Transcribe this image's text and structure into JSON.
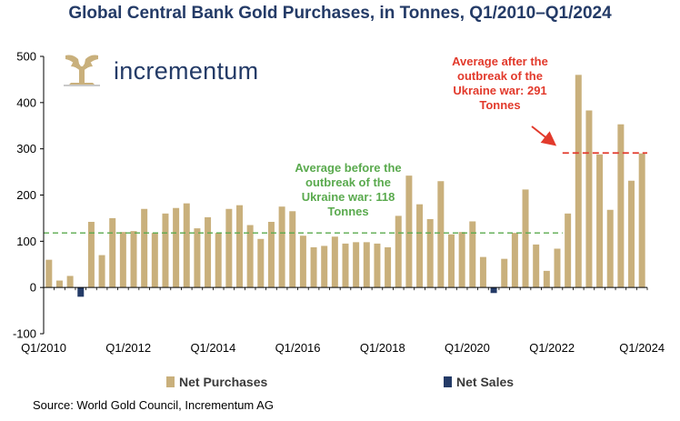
{
  "header": {
    "title": "Global Central Bank Gold Purchases, in Tonnes, Q1/2010–Q1/2024"
  },
  "brand": {
    "name": "incrementum"
  },
  "colors": {
    "net_purchases": "#c9b07c",
    "net_sales": "#243b67",
    "avg_before": "#5aaa4e",
    "avg_after": "#e23a2c"
  },
  "legend": {
    "net_purchases": "Net Purchases",
    "net_sales": "Net Sales"
  },
  "annotations": {
    "before_war": "Average before the outbreak of the Ukraine war: 118 Tonnes",
    "after_war": "Average after the outbreak of the Ukraine war: 291 Tonnes"
  },
  "source": "Source: World Gold Council, Incrementum AG",
  "chart_data": {
    "type": "bar",
    "title": "Global Central Bank Gold Purchases, in Tonnes, Q1/2010–Q1/2024",
    "ylim": [
      -100,
      500
    ],
    "yticks": [
      -100,
      0,
      100,
      200,
      300,
      400,
      500
    ],
    "xticks": [
      {
        "label": "Q1/2010",
        "index": 0
      },
      {
        "label": "Q1/2012",
        "index": 8
      },
      {
        "label": "Q1/2014",
        "index": 16
      },
      {
        "label": "Q1/2016",
        "index": 24
      },
      {
        "label": "Q1/2018",
        "index": 32
      },
      {
        "label": "Q1/2020",
        "index": 40
      },
      {
        "label": "Q1/2022",
        "index": 48
      },
      {
        "label": "Q1/2024",
        "index": 56
      }
    ],
    "categories": [
      "Q1/2010",
      "Q2/2010",
      "Q3/2010",
      "Q4/2010",
      "Q1/2011",
      "Q2/2011",
      "Q3/2011",
      "Q4/2011",
      "Q1/2012",
      "Q2/2012",
      "Q3/2012",
      "Q4/2012",
      "Q1/2013",
      "Q2/2013",
      "Q3/2013",
      "Q4/2013",
      "Q1/2014",
      "Q2/2014",
      "Q3/2014",
      "Q4/2014",
      "Q1/2015",
      "Q2/2015",
      "Q3/2015",
      "Q4/2015",
      "Q1/2016",
      "Q2/2016",
      "Q3/2016",
      "Q4/2016",
      "Q1/2017",
      "Q2/2017",
      "Q3/2017",
      "Q4/2017",
      "Q1/2018",
      "Q2/2018",
      "Q3/2018",
      "Q4/2018",
      "Q1/2019",
      "Q2/2019",
      "Q3/2019",
      "Q4/2019",
      "Q1/2020",
      "Q2/2020",
      "Q3/2020",
      "Q4/2020",
      "Q1/2021",
      "Q2/2021",
      "Q3/2021",
      "Q4/2021",
      "Q1/2022",
      "Q2/2022",
      "Q3/2022",
      "Q4/2022",
      "Q1/2023",
      "Q2/2023",
      "Q3/2023",
      "Q4/2023",
      "Q1/2024"
    ],
    "series": [
      {
        "name": "Net Purchases",
        "values": [
          60,
          15,
          25,
          0,
          142,
          70,
          150,
          120,
          122,
          170,
          118,
          160,
          172,
          182,
          128,
          152,
          118,
          170,
          178,
          135,
          105,
          142,
          175,
          165,
          112,
          87,
          90,
          110,
          95,
          98,
          98,
          95,
          87,
          155,
          242,
          180,
          148,
          230,
          115,
          120,
          143,
          66,
          0,
          62,
          118,
          212,
          93,
          36,
          84,
          160,
          460,
          383,
          288,
          168,
          353,
          231,
          290
        ]
      },
      {
        "name": "Net Sales",
        "values": [
          0,
          0,
          0,
          -20,
          0,
          0,
          0,
          0,
          0,
          0,
          0,
          0,
          0,
          0,
          0,
          0,
          0,
          0,
          0,
          0,
          0,
          0,
          0,
          0,
          0,
          0,
          0,
          0,
          0,
          0,
          0,
          0,
          0,
          0,
          0,
          0,
          0,
          0,
          0,
          0,
          0,
          0,
          -12,
          0,
          0,
          0,
          0,
          0,
          0,
          0,
          0,
          0,
          0,
          0,
          0,
          0,
          0
        ]
      }
    ],
    "reference_lines": [
      {
        "name": "Average before the outbreak of the Ukraine war",
        "value": 118,
        "from_index": 0,
        "to_index": 48,
        "style": "dashed",
        "color": "#5aaa4e"
      },
      {
        "name": "Average after the outbreak of the Ukraine war",
        "value": 291,
        "from_index": 49,
        "to_index": 56,
        "style": "dashed",
        "color": "#e23a2c"
      }
    ]
  }
}
